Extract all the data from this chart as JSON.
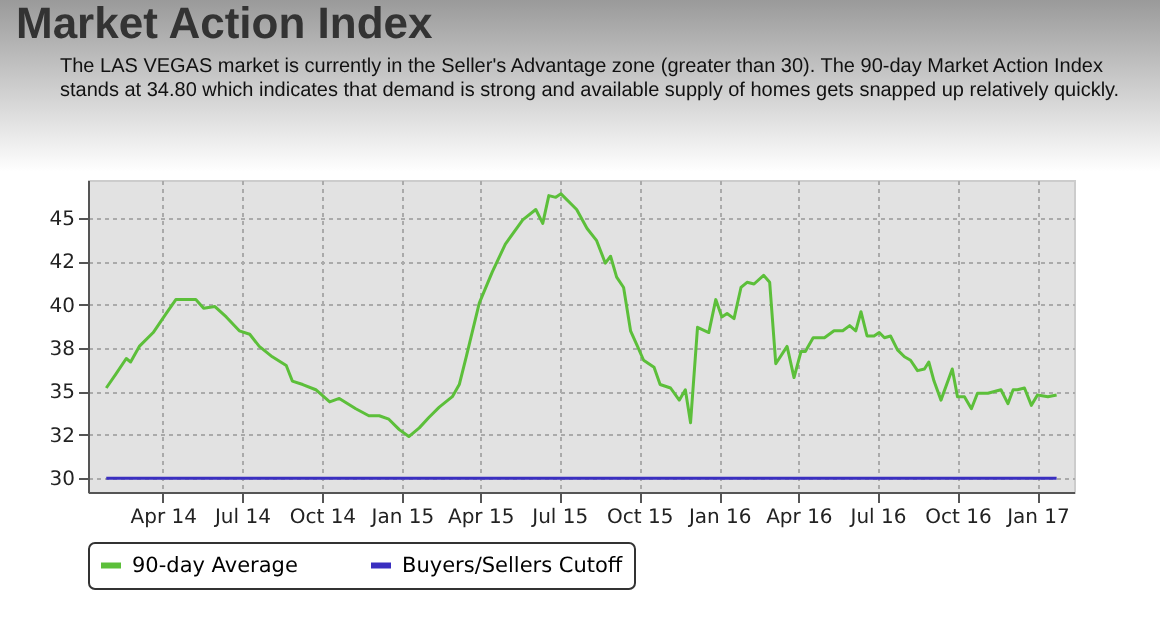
{
  "chart_data": {
    "type": "line",
    "title": "Market Action Index",
    "subtitle": "The LAS VEGAS market is currently in the Seller's Advantage zone (greater than 30). The 90-day Market Action Index stands at 34.80 which indicates that demand is strong and available supply of homes gets snapped up relatively quickly.",
    "series": [
      {
        "name": "90-day Average",
        "color": "#5cbf3a",
        "x": [
          "2014-01-26",
          "2014-02-06",
          "2014-02-18",
          "2014-02-23",
          "2014-03-05",
          "2014-03-21",
          "2014-04-05",
          "2014-04-16",
          "2014-04-28",
          "2014-05-09",
          "2014-05-18",
          "2014-05-31",
          "2014-06-13",
          "2014-06-28",
          "2014-07-10",
          "2014-07-21",
          "2014-08-05",
          "2014-08-21",
          "2014-08-28",
          "2014-09-09",
          "2014-09-24",
          "2014-10-10",
          "2014-10-21",
          "2014-11-09",
          "2014-11-24",
          "2014-12-06",
          "2014-12-17",
          "2014-12-29",
          "2015-01-09",
          "2015-01-21",
          "2015-02-01",
          "2015-02-13",
          "2015-02-28",
          "2015-03-08",
          "2015-03-16",
          "2015-03-31",
          "2015-04-15",
          "2015-04-30",
          "2015-05-20",
          "2015-06-04",
          "2015-06-12",
          "2015-06-19",
          "2015-06-27",
          "2015-07-03",
          "2015-07-21",
          "2015-08-02",
          "2015-08-13",
          "2015-08-23",
          "2015-08-29",
          "2015-09-05",
          "2015-09-13",
          "2015-09-21",
          "2015-09-29",
          "2015-10-06",
          "2015-10-18",
          "2015-10-25",
          "2015-11-06",
          "2015-11-16",
          "2015-11-23",
          "2015-11-29",
          "2015-12-07",
          "2015-12-20",
          "2015-12-28",
          "2016-01-04",
          "2016-01-10",
          "2016-01-18",
          "2016-01-26",
          "2016-02-02",
          "2016-02-10",
          "2016-02-21",
          "2016-02-28",
          "2016-03-06",
          "2016-03-19",
          "2016-03-27",
          "2016-04-04",
          "2016-04-09",
          "2016-04-18",
          "2016-05-01",
          "2016-05-12",
          "2016-05-22",
          "2016-05-30",
          "2016-06-06",
          "2016-06-12",
          "2016-06-19",
          "2016-06-27",
          "2016-07-03",
          "2016-07-09",
          "2016-07-16",
          "2016-07-24",
          "2016-08-01",
          "2016-08-08",
          "2016-08-16",
          "2016-08-24",
          "2016-08-29",
          "2016-09-04",
          "2016-09-12",
          "2016-09-25",
          "2016-10-01",
          "2016-10-09",
          "2016-10-17",
          "2016-10-24",
          "2016-11-05",
          "2016-11-20",
          "2016-11-28",
          "2016-12-04",
          "2016-12-09",
          "2016-12-17",
          "2016-12-25",
          "2017-01-01",
          "2017-01-13",
          "2017-01-23"
        ],
        "values": [
          35.2,
          36.0,
          36.9,
          36.7,
          37.6,
          38.4,
          39.5,
          40.3,
          40.3,
          40.3,
          39.8,
          39.9,
          39.3,
          38.5,
          38.3,
          37.6,
          37.0,
          36.5,
          35.6,
          35.4,
          35.1,
          34.4,
          34.6,
          34.0,
          33.6,
          33.6,
          33.4,
          32.8,
          32.4,
          32.9,
          33.5,
          34.1,
          34.7,
          35.4,
          37.0,
          40.1,
          41.9,
          43.5,
          44.9,
          45.5,
          44.7,
          46.3,
          46.2,
          46.4,
          45.5,
          44.4,
          43.7,
          42.4,
          42.8,
          41.6,
          41.0,
          38.5,
          37.6,
          36.8,
          36.4,
          35.4,
          35.2,
          34.5,
          35.1,
          33.2,
          38.7,
          38.4,
          40.3,
          39.3,
          39.5,
          39.2,
          41.0,
          41.3,
          41.2,
          41.7,
          41.3,
          36.6,
          37.6,
          35.8,
          37.3,
          37.3,
          38.1,
          38.1,
          38.5,
          38.5,
          38.8,
          38.5,
          39.6,
          38.2,
          38.2,
          38.4,
          38.1,
          38.2,
          37.4,
          37.0,
          36.8,
          36.2,
          36.3,
          36.7,
          35.6,
          34.5,
          36.3,
          34.7,
          34.7,
          34.0,
          34.9,
          34.9,
          35.1,
          34.3,
          35.1,
          35.1,
          35.2,
          34.2,
          34.8,
          34.7,
          34.8
        ]
      },
      {
        "name": "Buyers/Sellers Cutoff",
        "color": "#3a2fc0",
        "x": [
          "2014-01-26",
          "2017-01-23"
        ],
        "values": [
          30,
          30
        ]
      }
    ],
    "xlim": [
      "2014-01-05",
      "2017-02-12"
    ],
    "xticks": [
      {
        "value": "2014-04-01",
        "label": "Apr 14"
      },
      {
        "value": "2014-07-01",
        "label": "Jul 14"
      },
      {
        "value": "2014-10-01",
        "label": "Oct 14"
      },
      {
        "value": "2015-01-01",
        "label": "Jan 15"
      },
      {
        "value": "2015-04-01",
        "label": "Apr 15"
      },
      {
        "value": "2015-07-01",
        "label": "Jul 15"
      },
      {
        "value": "2015-10-01",
        "label": "Oct 15"
      },
      {
        "value": "2016-01-01",
        "label": "Jan 16"
      },
      {
        "value": "2016-04-01",
        "label": "Apr 16"
      },
      {
        "value": "2016-07-01",
        "label": "Jul 16"
      },
      {
        "value": "2016-10-01",
        "label": "Oct 16"
      },
      {
        "value": "2017-01-01",
        "label": "Jan 17"
      }
    ],
    "ylim": [
      29.2,
      47.2
    ],
    "yticks": [
      30,
      {
        "value": 32.5,
        "label": "32"
      },
      35,
      {
        "value": 37.5,
        "label": "38"
      },
      40,
      {
        "value": 42.5,
        "label": "42"
      },
      45
    ],
    "grid": true,
    "legend": "bottom",
    "line_style": "solid"
  }
}
